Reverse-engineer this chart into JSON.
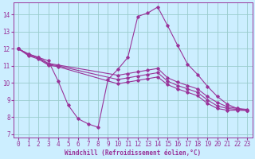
{
  "xlabel": "Windchill (Refroidissement éolien,°C)",
  "bg_color": "#cceeff",
  "grid_color": "#99cccc",
  "line_color": "#993399",
  "spine_color": "#993399",
  "xlim": [
    -0.5,
    23.5
  ],
  "ylim": [
    6.8,
    14.7
  ],
  "yticks": [
    7,
    8,
    9,
    10,
    11,
    12,
    13,
    14
  ],
  "xticks": [
    0,
    1,
    2,
    3,
    4,
    5,
    6,
    7,
    8,
    9,
    10,
    11,
    12,
    13,
    14,
    15,
    16,
    17,
    18,
    19,
    20,
    21,
    22,
    23
  ],
  "curves": [
    {
      "x": [
        0,
        1,
        2,
        3,
        4,
        5,
        6,
        7,
        8,
        9,
        10,
        11,
        12,
        13,
        14,
        15,
        16,
        17,
        18,
        19,
        20,
        21,
        22,
        23
      ],
      "y": [
        12.0,
        11.7,
        11.5,
        11.3,
        10.1,
        8.7,
        7.9,
        7.6,
        7.4,
        10.2,
        10.8,
        11.5,
        13.9,
        14.1,
        14.45,
        13.35,
        12.2,
        11.1,
        10.5,
        9.8,
        9.2,
        8.75,
        8.5,
        8.4
      ]
    },
    {
      "x": [
        0,
        1,
        2,
        3,
        4,
        10,
        11,
        12,
        13,
        14,
        15,
        16,
        17,
        18,
        19,
        20,
        21,
        22,
        23
      ],
      "y": [
        12.0,
        11.7,
        11.5,
        11.15,
        11.05,
        10.45,
        10.55,
        10.65,
        10.75,
        10.85,
        10.3,
        10.05,
        9.85,
        9.65,
        9.2,
        8.85,
        8.6,
        8.5,
        8.45
      ]
    },
    {
      "x": [
        0,
        1,
        2,
        3,
        4,
        10,
        11,
        12,
        13,
        14,
        15,
        16,
        17,
        18,
        19,
        20,
        21,
        22,
        23
      ],
      "y": [
        12.0,
        11.65,
        11.45,
        11.1,
        11.0,
        10.2,
        10.3,
        10.4,
        10.5,
        10.6,
        10.1,
        9.85,
        9.65,
        9.45,
        9.0,
        8.65,
        8.5,
        8.45,
        8.4
      ]
    },
    {
      "x": [
        0,
        1,
        2,
        3,
        4,
        10,
        11,
        12,
        13,
        14,
        15,
        16,
        17,
        18,
        19,
        20,
        21,
        22,
        23
      ],
      "y": [
        12.0,
        11.6,
        11.4,
        11.05,
        10.95,
        9.95,
        10.05,
        10.15,
        10.25,
        10.35,
        9.9,
        9.65,
        9.45,
        9.25,
        8.8,
        8.5,
        8.4,
        8.4,
        8.38
      ]
    }
  ]
}
